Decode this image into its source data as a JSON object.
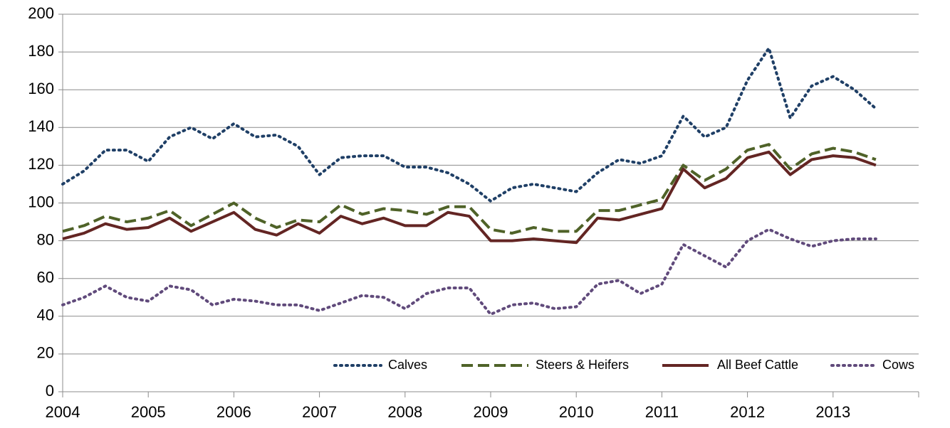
{
  "chart_data": {
    "type": "line",
    "x": [
      2004,
      2004.25,
      2004.5,
      2004.75,
      2005,
      2005.25,
      2005.5,
      2005.75,
      2006,
      2006.25,
      2006.5,
      2006.75,
      2007,
      2007.25,
      2007.5,
      2007.75,
      2008,
      2008.25,
      2008.5,
      2008.75,
      2009,
      2009.25,
      2009.5,
      2009.75,
      2010,
      2010.25,
      2010.5,
      2010.75,
      2011,
      2011.25,
      2011.5,
      2011.75,
      2012,
      2012.25,
      2012.5,
      2012.75,
      2013,
      2013.25,
      2013.5
    ],
    "series": [
      {
        "name": "Calves",
        "color": "#1f3f66",
        "dash": "dot",
        "values": [
          110,
          117,
          128,
          128,
          122,
          135,
          140,
          134,
          142,
          135,
          136,
          130,
          115,
          124,
          125,
          125,
          119,
          119,
          116,
          110,
          101,
          108,
          110,
          108,
          106,
          116,
          123,
          121,
          125,
          146,
          135,
          140,
          165,
          182,
          145,
          162,
          167,
          160,
          150
        ]
      },
      {
        "name": "Steers & Heifers",
        "color": "#4f6228",
        "dash": "dash",
        "values": [
          85,
          88,
          93,
          90,
          92,
          96,
          88,
          94,
          100,
          92,
          87,
          91,
          90,
          99,
          94,
          97,
          96,
          94,
          98,
          98,
          86,
          84,
          87,
          85,
          85,
          96,
          96,
          99,
          102,
          120,
          112,
          118,
          128,
          131,
          118,
          126,
          129,
          127,
          123
        ]
      },
      {
        "name": "All Beef Cattle",
        "color": "#632523",
        "dash": "solid",
        "values": [
          81,
          84,
          89,
          86,
          87,
          92,
          85,
          90,
          95,
          86,
          83,
          89,
          84,
          93,
          89,
          92,
          88,
          88,
          95,
          93,
          80,
          80,
          81,
          80,
          79,
          92,
          91,
          94,
          97,
          118,
          108,
          113,
          124,
          127,
          115,
          123,
          125,
          124,
          120
        ]
      },
      {
        "name": "Cows",
        "color": "#604a7b",
        "dash": "dot",
        "values": [
          46,
          50,
          56,
          50,
          48,
          56,
          54,
          46,
          49,
          48,
          46,
          46,
          43,
          47,
          51,
          50,
          44,
          52,
          55,
          55,
          41,
          46,
          47,
          44,
          45,
          57,
          59,
          52,
          57,
          78,
          72,
          66,
          80,
          86,
          81,
          77,
          80,
          81,
          81
        ]
      }
    ],
    "xlim": [
      2004,
      2014
    ],
    "xticks": [
      2004,
      2005,
      2006,
      2007,
      2008,
      2009,
      2010,
      2011,
      2012,
      2013
    ],
    "ylim": [
      0,
      200
    ],
    "yticks": [
      0,
      20,
      40,
      60,
      80,
      100,
      120,
      140,
      160,
      180,
      200
    ],
    "grid": true,
    "legend": "bottom-right"
  }
}
